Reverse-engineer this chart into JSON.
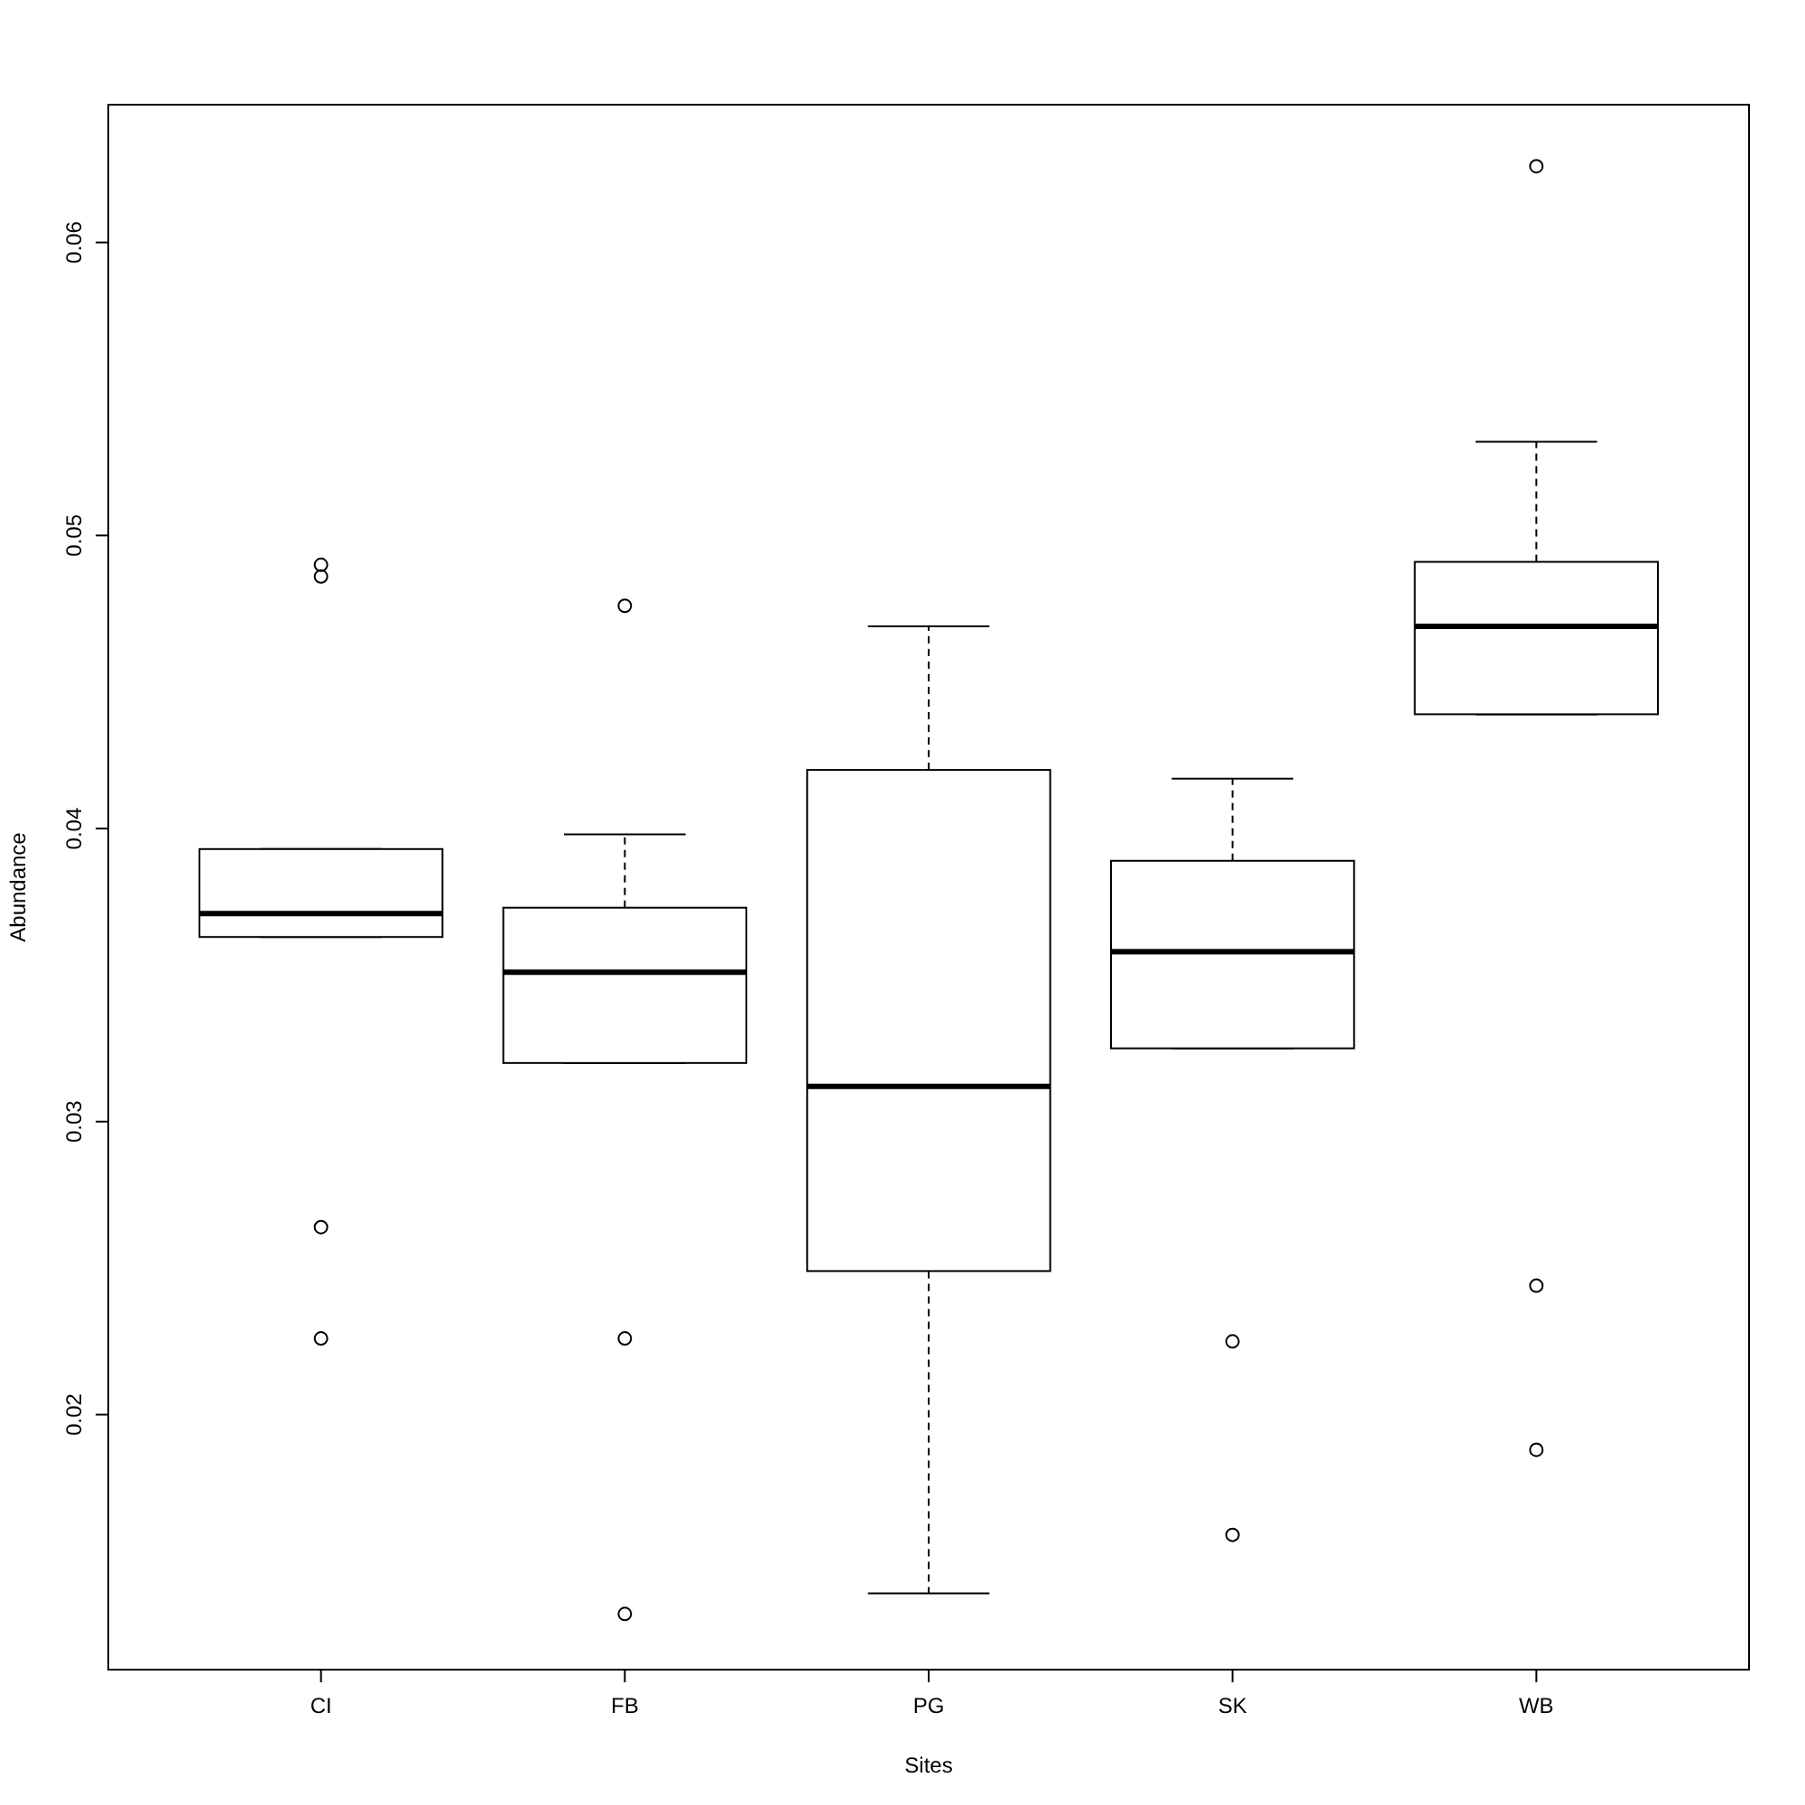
{
  "chart_data": {
    "type": "box",
    "xlabel": "Sites",
    "ylabel": "Abundance",
    "categories": [
      "CI",
      "FB",
      "PG",
      "SK",
      "WB"
    ],
    "boxes": [
      {
        "low": 0.0363,
        "q1": 0.0363,
        "median": 0.0371,
        "q3": 0.0393,
        "high": 0.0393,
        "outliers": [
          0.049,
          0.0486,
          0.0264,
          0.0226
        ]
      },
      {
        "low": 0.032,
        "q1": 0.032,
        "median": 0.0351,
        "q3": 0.0373,
        "high": 0.0398,
        "outliers": [
          0.0476,
          0.0226,
          0.0132
        ]
      },
      {
        "low": 0.0139,
        "q1": 0.0249,
        "median": 0.0312,
        "q3": 0.042,
        "high": 0.0469
      },
      {
        "low": 0.0325,
        "q1": 0.0325,
        "median": 0.0358,
        "q3": 0.0389,
        "high": 0.0417,
        "outliers": [
          0.0225,
          0.0159
        ]
      },
      {
        "low": 0.0439,
        "q1": 0.0439,
        "median": 0.0469,
        "q3": 0.0491,
        "high": 0.0532,
        "outliers": [
          0.0626,
          0.0244,
          0.0188
        ]
      }
    ],
    "ylim": [
      0.0113,
      0.0647
    ],
    "yticks": [
      0.02,
      0.03,
      0.04,
      0.05,
      0.06
    ]
  }
}
